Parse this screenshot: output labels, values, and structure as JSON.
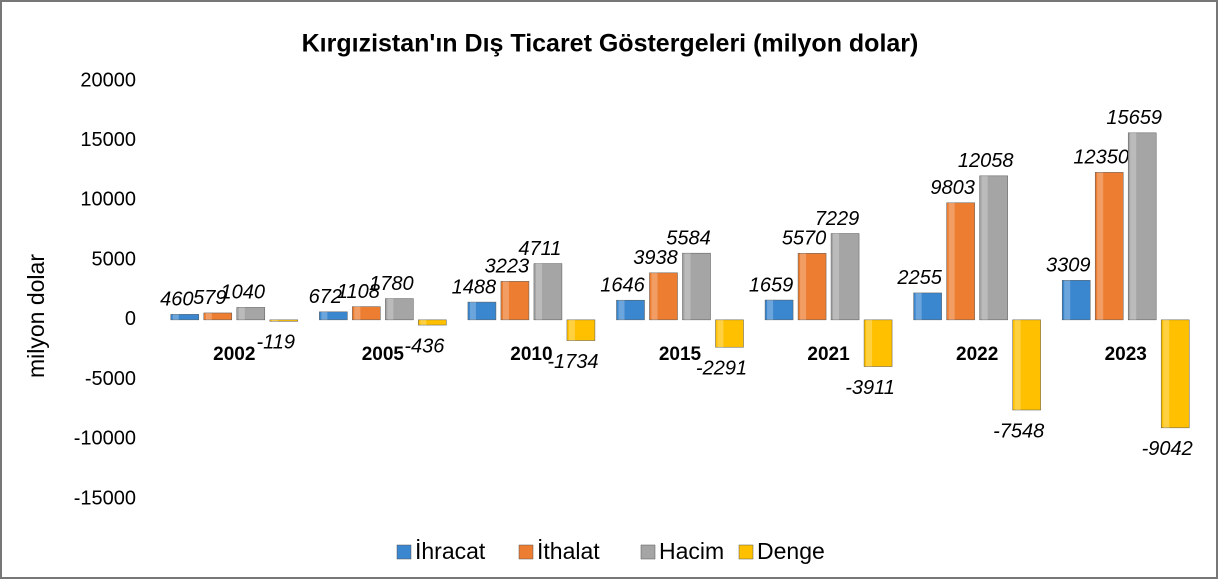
{
  "chart_data": {
    "type": "bar",
    "title": "Kırgızistan'ın Dış Ticaret Göstergeleri  (milyon dolar)",
    "y_label": "milyon dolar",
    "categories": [
      "2002",
      "2005",
      "2010",
      "2015",
      "2021",
      "2022",
      "2023"
    ],
    "series": [
      {
        "name": "İhracat",
        "color": "#3a87d0",
        "values": [
          460,
          672,
          1488,
          1646,
          1659,
          2255,
          3309
        ]
      },
      {
        "name": "İthalat",
        "color": "#ed7d31",
        "values": [
          579,
          1108,
          3223,
          3938,
          5570,
          9803,
          12350
        ]
      },
      {
        "name": "Hacim",
        "color": "#a5a5a5",
        "values": [
          1040,
          1780,
          4711,
          5584,
          7229,
          12058,
          15659
        ]
      },
      {
        "name": "Denge",
        "color": "#ffc000",
        "values": [
          -119,
          -436,
          -1734,
          -2291,
          -3911,
          -7548,
          -9042
        ]
      }
    ],
    "ylim": [
      -15000,
      20000
    ],
    "yticks": [
      -15000,
      -10000,
      -5000,
      0,
      5000,
      10000,
      15000,
      20000
    ],
    "grid": false,
    "legend": "bottom"
  }
}
